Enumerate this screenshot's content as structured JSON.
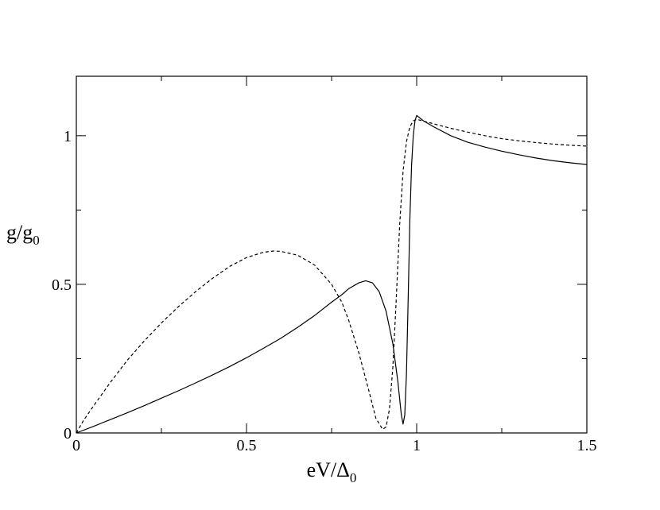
{
  "chart_data": {
    "type": "line",
    "xlabel": {
      "main": "eV/Δ",
      "sub": "0"
    },
    "ylabel": {
      "main": "g/g",
      "sub": "0"
    },
    "xlim": [
      0,
      1.5
    ],
    "ylim": [
      0,
      1.2
    ],
    "grid": false,
    "legend": "none",
    "x_ticks": [
      {
        "value": 0,
        "label": "0"
      },
      {
        "value": 0.5,
        "label": "0.5"
      },
      {
        "value": 1,
        "label": "1"
      },
      {
        "value": 1.5,
        "label": "1.5"
      }
    ],
    "y_ticks": [
      {
        "value": 0,
        "label": "0"
      },
      {
        "value": 0.5,
        "label": "0.5"
      },
      {
        "value": 1,
        "label": "1"
      }
    ],
    "series": [
      {
        "style": "solid",
        "color": "#000000",
        "points": [
          [
            0,
            0
          ],
          [
            0.05,
            0.022
          ],
          [
            0.1,
            0.045
          ],
          [
            0.15,
            0.068
          ],
          [
            0.2,
            0.092
          ],
          [
            0.25,
            0.117
          ],
          [
            0.3,
            0.142
          ],
          [
            0.35,
            0.168
          ],
          [
            0.4,
            0.195
          ],
          [
            0.45,
            0.223
          ],
          [
            0.5,
            0.253
          ],
          [
            0.55,
            0.285
          ],
          [
            0.6,
            0.318
          ],
          [
            0.65,
            0.355
          ],
          [
            0.7,
            0.395
          ],
          [
            0.75,
            0.44
          ],
          [
            0.78,
            0.465
          ],
          [
            0.8,
            0.485
          ],
          [
            0.83,
            0.505
          ],
          [
            0.85,
            0.512
          ],
          [
            0.87,
            0.505
          ],
          [
            0.89,
            0.475
          ],
          [
            0.91,
            0.41
          ],
          [
            0.93,
            0.3
          ],
          [
            0.945,
            0.17
          ],
          [
            0.955,
            0.06
          ],
          [
            0.96,
            0.03
          ],
          [
            0.965,
            0.06
          ],
          [
            0.97,
            0.2
          ],
          [
            0.975,
            0.45
          ],
          [
            0.98,
            0.72
          ],
          [
            0.985,
            0.9
          ],
          [
            0.99,
            1.0
          ],
          [
            0.995,
            1.05
          ],
          [
            1.0,
            1.068
          ],
          [
            1.02,
            1.05
          ],
          [
            1.05,
            1.03
          ],
          [
            1.1,
            1.0
          ],
          [
            1.15,
            0.978
          ],
          [
            1.2,
            0.962
          ],
          [
            1.25,
            0.948
          ],
          [
            1.3,
            0.936
          ],
          [
            1.35,
            0.925
          ],
          [
            1.4,
            0.916
          ],
          [
            1.45,
            0.909
          ],
          [
            1.5,
            0.903
          ]
        ]
      },
      {
        "style": "dashed",
        "color": "#000000",
        "points": [
          [
            0,
            0
          ],
          [
            0.02,
            0.04
          ],
          [
            0.05,
            0.09
          ],
          [
            0.1,
            0.17
          ],
          [
            0.15,
            0.245
          ],
          [
            0.2,
            0.31
          ],
          [
            0.25,
            0.37
          ],
          [
            0.3,
            0.425
          ],
          [
            0.35,
            0.475
          ],
          [
            0.4,
            0.52
          ],
          [
            0.45,
            0.56
          ],
          [
            0.5,
            0.59
          ],
          [
            0.55,
            0.608
          ],
          [
            0.58,
            0.612
          ],
          [
            0.6,
            0.611
          ],
          [
            0.65,
            0.598
          ],
          [
            0.7,
            0.565
          ],
          [
            0.75,
            0.5
          ],
          [
            0.78,
            0.44
          ],
          [
            0.8,
            0.38
          ],
          [
            0.83,
            0.27
          ],
          [
            0.86,
            0.14
          ],
          [
            0.88,
            0.05
          ],
          [
            0.9,
            0.012
          ],
          [
            0.91,
            0.02
          ],
          [
            0.92,
            0.08
          ],
          [
            0.93,
            0.22
          ],
          [
            0.94,
            0.45
          ],
          [
            0.95,
            0.7
          ],
          [
            0.96,
            0.88
          ],
          [
            0.97,
            0.98
          ],
          [
            0.98,
            1.03
          ],
          [
            0.99,
            1.05
          ],
          [
            1.0,
            1.055
          ],
          [
            1.05,
            1.04
          ],
          [
            1.1,
            1.025
          ],
          [
            1.15,
            1.012
          ],
          [
            1.2,
            1.0
          ],
          [
            1.25,
            0.99
          ],
          [
            1.3,
            0.983
          ],
          [
            1.35,
            0.977
          ],
          [
            1.4,
            0.972
          ],
          [
            1.45,
            0.968
          ],
          [
            1.5,
            0.965
          ]
        ]
      }
    ]
  }
}
